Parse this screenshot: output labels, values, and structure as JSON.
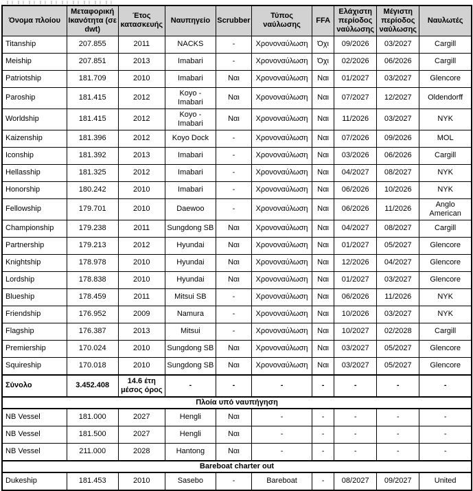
{
  "colors": {
    "header_bg": "#d2d2d2",
    "border": "#000000",
    "text": "#000000"
  },
  "table": {
    "columns": [
      "Όνομα πλοίου",
      "Μεταφορική Ικανότητα (σε dwt)",
      "Έτος κατασκευής",
      "Ναυπηγείο",
      "Scrubber",
      "Τύπος ναύλωσης",
      "FFA",
      "Ελάχιστη περίοδος ναύλωσης",
      "Μέγιστη περίοδος ναύλωσης",
      "Ναυλωτές"
    ],
    "rows": [
      {
        "type": "ship",
        "cells": [
          "Titanship",
          "207.855",
          "2011",
          "NACKS",
          "-",
          "Χρονοναύλωση",
          "Όχι",
          "09/2026",
          "03/2027",
          "Cargill"
        ]
      },
      {
        "type": "ship",
        "cells": [
          "Meiship",
          "207.851",
          "2013",
          "Imabari",
          "-",
          "Χρονοναύλωση",
          "Όχι",
          "02/2026",
          "06/2026",
          "Cargill"
        ]
      },
      {
        "type": "ship",
        "cells": [
          "Patriotship",
          "181.709",
          "2010",
          "Imabari",
          "Ναι",
          "Χρονοναύλωση",
          "Ναι",
          "01/2027",
          "03/2027",
          "Glencore"
        ]
      },
      {
        "type": "ship",
        "cells": [
          "Paroship",
          "181.415",
          "2012",
          "Koyo - Imabari",
          "Ναι",
          "Χρονοναύλωση",
          "Ναι",
          "07/2027",
          "12/2027",
          "Oldendorff"
        ]
      },
      {
        "type": "ship",
        "cells": [
          "Worldship",
          "181.415",
          "2012",
          "Koyo - Imabari",
          "Ναι",
          "Χρονοναύλωση",
          "Ναι",
          "11/2026",
          "03/2027",
          "NYK"
        ]
      },
      {
        "type": "ship",
        "cells": [
          "Kaizenship",
          "181.396",
          "2012",
          "Koyo Dock",
          "-",
          "Χρονοναύλωση",
          "Ναι",
          "07/2026",
          "09/2026",
          "MOL"
        ]
      },
      {
        "type": "ship",
        "cells": [
          "Iconship",
          "181.392",
          "2013",
          "Imabari",
          "-",
          "Χρονοναύλωση",
          "Ναι",
          "03/2026",
          "06/2026",
          "Cargill"
        ]
      },
      {
        "type": "ship",
        "cells": [
          "Hellasship",
          "181.325",
          "2012",
          "Imabari",
          "-",
          "Χρονοναύλωση",
          "Ναι",
          "04/2027",
          "08/2027",
          "NYK"
        ]
      },
      {
        "type": "ship",
        "cells": [
          "Honorship",
          "180.242",
          "2010",
          "Imabari",
          "-",
          "Χρονοναύλωση",
          "Ναι",
          "06/2026",
          "10/2026",
          "NYK"
        ]
      },
      {
        "type": "ship",
        "cells": [
          "Fellowship",
          "179.701",
          "2010",
          "Daewoo",
          "-",
          "Χρονοναύλωση",
          "Ναι",
          "06/2026",
          "11/2026",
          "Anglo American"
        ]
      },
      {
        "type": "ship",
        "cells": [
          "Championship",
          "179.238",
          "2011",
          "Sungdong SB",
          "Ναι",
          "Χρονοναύλωση",
          "Ναι",
          "04/2027",
          "08/2027",
          "Cargill"
        ]
      },
      {
        "type": "ship",
        "cells": [
          "Partnership",
          "179.213",
          "2012",
          "Hyundai",
          "Ναι",
          "Χρονοναύλωση",
          "Ναι",
          "01/2027",
          "05/2027",
          "Glencore"
        ]
      },
      {
        "type": "ship",
        "cells": [
          "Knightship",
          "178.978",
          "2010",
          "Hyundai",
          "Ναι",
          "Χρονοναύλωση",
          "Ναι",
          "12/2026",
          "04/2027",
          "Glencore"
        ]
      },
      {
        "type": "ship",
        "cells": [
          "Lordship",
          "178.838",
          "2010",
          "Hyundai",
          "Ναι",
          "Χρονοναύλωση",
          "Ναι",
          "01/2027",
          "03/2027",
          "Glencore"
        ]
      },
      {
        "type": "ship",
        "cells": [
          "Blueship",
          "178.459",
          "2011",
          "Mitsui SB",
          "-",
          "Χρονοναύλωση",
          "Ναι",
          "06/2026",
          "11/2026",
          "NYK"
        ]
      },
      {
        "type": "ship",
        "cells": [
          "Friendship",
          "176.952",
          "2009",
          "Namura",
          "-",
          "Χρονοναύλωση",
          "Ναι",
          "10/2026",
          "03/2027",
          "NYK"
        ]
      },
      {
        "type": "ship",
        "cells": [
          "Flagship",
          "176.387",
          "2013",
          "Mitsui",
          "-",
          "Χρονοναύλωση",
          "Ναι",
          "10/2027",
          "02/2028",
          "Cargill"
        ]
      },
      {
        "type": "ship",
        "cells": [
          "Premiership",
          "170.024",
          "2010",
          "Sungdong SB",
          "Ναι",
          "Χρονοναύλωση",
          "Ναι",
          "03/2027",
          "05/2027",
          "Glencore"
        ]
      },
      {
        "type": "ship",
        "cells": [
          "Squireship",
          "170.018",
          "2010",
          "Sungdong SB",
          "Ναι",
          "Χρονοναύλωση",
          "Ναι",
          "03/2027",
          "05/2027",
          "Glencore"
        ]
      },
      {
        "type": "total",
        "cells": [
          "Σύνολο",
          "3.452.408",
          "14.6 έτη μέσος όρος",
          "-",
          "-",
          "-",
          "-",
          "-",
          "-",
          "-"
        ]
      },
      {
        "type": "section",
        "label": "Πλοία υπό ναυπήγηση"
      },
      {
        "type": "ship",
        "cells": [
          "NB Vessel",
          "181.000",
          "2027",
          "Hengli",
          "Ναι",
          "-",
          "-",
          "-",
          "-",
          "-"
        ]
      },
      {
        "type": "ship",
        "cells": [
          "NB Vessel",
          "181.500",
          "2027",
          "Hengli",
          "Ναι",
          "-",
          "-",
          "-",
          "-",
          "-"
        ]
      },
      {
        "type": "ship",
        "cells": [
          "NB Vessel",
          "211.000",
          "2028",
          "Hantong",
          "Ναι",
          "-",
          "-",
          "-",
          "-",
          "-"
        ]
      },
      {
        "type": "section",
        "label": "Bareboat charter out"
      },
      {
        "type": "ship",
        "cells": [
          "Dukeship",
          "181.453",
          "2010",
          "Sasebo",
          "-",
          "Bareboat",
          "-",
          "08/2027",
          "09/2027",
          "United"
        ]
      }
    ]
  }
}
